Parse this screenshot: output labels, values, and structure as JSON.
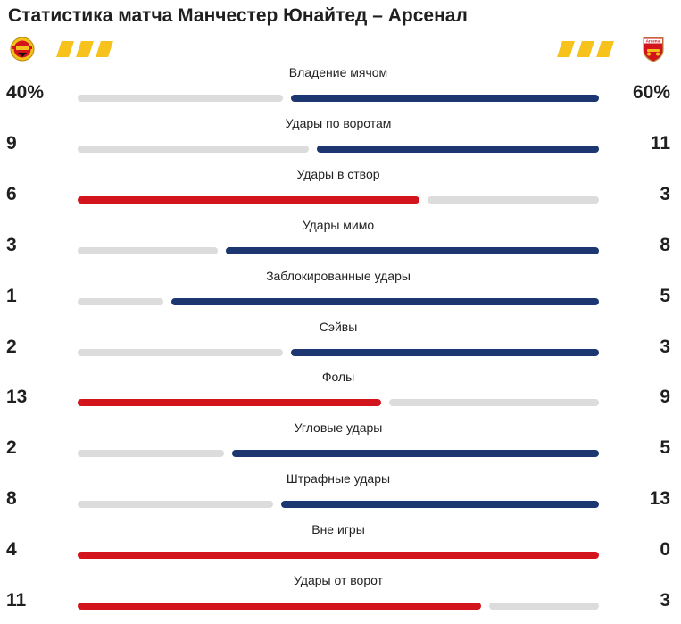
{
  "title": "Статистика матча Манчестер Юнайтед – Арсенал",
  "colors": {
    "home": "#d4141c",
    "away": "#1b3670",
    "neutral": "#dcdcdc",
    "stripe": "#f7c21b"
  },
  "teams": {
    "home": {
      "crest_icon": "manchester-united-crest-icon"
    },
    "away": {
      "crest_icon": "arsenal-crest-icon",
      "crest_text": "Arsenal"
    }
  },
  "stats": [
    {
      "label": "Владение мячом",
      "home_display": "40%",
      "away_display": "60%",
      "home": 40,
      "away": 60
    },
    {
      "label": "Удары по воротам",
      "home_display": "9",
      "away_display": "11",
      "home": 9,
      "away": 11
    },
    {
      "label": "Удары в створ",
      "home_display": "6",
      "away_display": "3",
      "home": 6,
      "away": 3
    },
    {
      "label": "Удары мимо",
      "home_display": "3",
      "away_display": "8",
      "home": 3,
      "away": 8
    },
    {
      "label": "Заблокированные удары",
      "home_display": "1",
      "away_display": "5",
      "home": 1,
      "away": 5
    },
    {
      "label": "Сэйвы",
      "home_display": "2",
      "away_display": "3",
      "home": 2,
      "away": 3
    },
    {
      "label": "Фолы",
      "home_display": "13",
      "away_display": "9",
      "home": 13,
      "away": 9
    },
    {
      "label": "Угловые удары",
      "home_display": "2",
      "away_display": "5",
      "home": 2,
      "away": 5
    },
    {
      "label": "Штрафные удары",
      "home_display": "8",
      "away_display": "13",
      "home": 8,
      "away": 13
    },
    {
      "label": "Вне игры",
      "home_display": "4",
      "away_display": "0",
      "home": 4,
      "away": 0
    },
    {
      "label": "Удары от ворот",
      "home_display": "11",
      "away_display": "3",
      "home": 11,
      "away": 3
    }
  ]
}
